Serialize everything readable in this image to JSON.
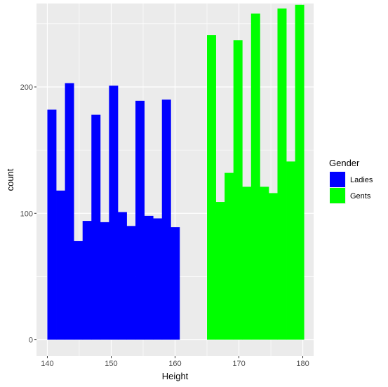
{
  "chart_data": {
    "type": "bar",
    "subtype": "histogram",
    "xlabel": "Height",
    "ylabel": "count",
    "xlim": [
      138.3,
      181.7
    ],
    "ylim": [
      -13,
      266
    ],
    "x_ticks": [
      140,
      150,
      160,
      170,
      180
    ],
    "y_ticks": [
      0,
      100,
      200
    ],
    "bin_width": 1.38,
    "grid": true,
    "legend": {
      "title": "Gender",
      "position": "right"
    },
    "series": [
      {
        "name": "Ladies",
        "color": "#0000FF",
        "bin_starts": [
          140,
          141.38,
          142.76,
          144.14,
          145.52,
          146.9,
          148.28,
          149.66,
          151.04,
          152.42,
          153.8,
          155.18,
          156.56,
          157.94,
          159.32
        ],
        "values": [
          182,
          118,
          203,
          78,
          94,
          178,
          93,
          201,
          101,
          90,
          189,
          98,
          96,
          190,
          89
        ]
      },
      {
        "name": "Gents",
        "color": "#00FF00",
        "bin_starts": [
          165,
          166.38,
          167.76,
          169.14,
          170.52,
          171.9,
          173.28,
          174.66,
          176.04,
          177.42,
          178.8
        ],
        "values": [
          241,
          109,
          132,
          237,
          121,
          258,
          121,
          116,
          262,
          141,
          265
        ]
      }
    ]
  }
}
